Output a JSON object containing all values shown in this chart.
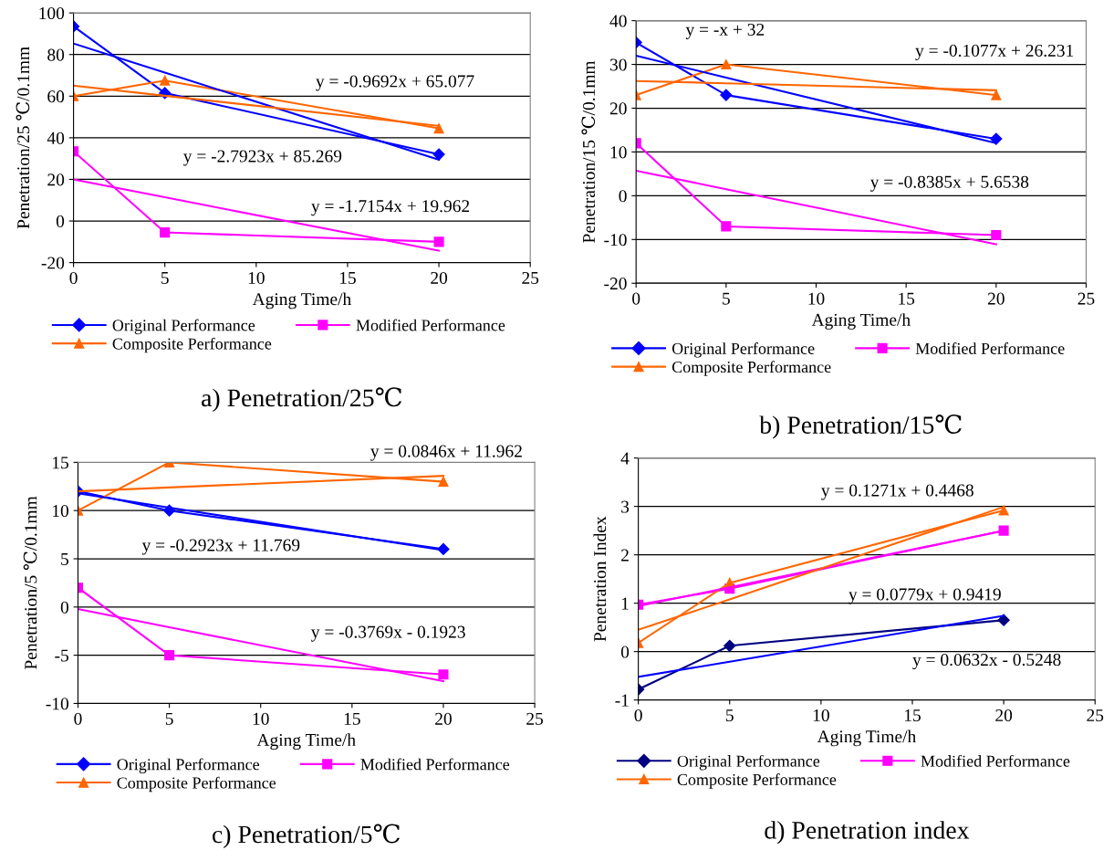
{
  "chart_data": [
    {
      "type": "line",
      "title": "a) Penetration/25℃",
      "xlabel": "Aging Time/h",
      "ylabel": "Penetration/25 ℃/0.1mm",
      "x": [
        0,
        5,
        20
      ],
      "xlim": [
        0,
        25
      ],
      "xticks": [
        0,
        5,
        10,
        15,
        20,
        25
      ],
      "ylim": [
        -20,
        100
      ],
      "yticks": [
        -20,
        0,
        20,
        40,
        60,
        80,
        100
      ],
      "grid": "y",
      "legend": "bottom",
      "series": [
        {
          "name": "Original Performance",
          "color": "#0000ff",
          "marker": "diamond",
          "values": [
            93.5,
            61.5,
            32
          ]
        },
        {
          "name": "Modified Performance",
          "color": "#ff00ff",
          "marker": "square",
          "values": [
            33.5,
            -5.5,
            -10
          ]
        },
        {
          "name": "Composite Performance",
          "color": "#ff6600",
          "marker": "triangle",
          "values": [
            60,
            67.5,
            44.5
          ]
        },
        {
          "color": "#0000ff",
          "marker": "none",
          "values": [
            85.3,
            71.3,
            29.4
          ]
        },
        {
          "color": "#ff00ff",
          "marker": "none",
          "values": [
            20.0,
            11.4,
            -14.3
          ]
        },
        {
          "color": "#ff6600",
          "marker": "none",
          "values": [
            65.1,
            60.2,
            45.7
          ]
        }
      ],
      "annotations": [
        "y = -0.9692x + 65.077",
        "y = -2.7923x + 85.269",
        "y = -1.7154x + 19.962"
      ]
    },
    {
      "type": "line",
      "title": "b) Penetration/15℃",
      "xlabel": "Aging Time/h",
      "ylabel": "Penetration/15 ℃/0.1mm",
      "x": [
        0,
        5,
        20
      ],
      "xlim": [
        0,
        25
      ],
      "xticks": [
        0,
        5,
        10,
        15,
        20,
        25
      ],
      "ylim": [
        -20,
        40
      ],
      "yticks": [
        -20,
        -10,
        0,
        10,
        20,
        30,
        40
      ],
      "grid": "y",
      "legend": "bottom",
      "series": [
        {
          "name": "Original Performance",
          "color": "#0000ff",
          "marker": "diamond",
          "values": [
            35,
            23,
            13
          ]
        },
        {
          "name": "Modified Performance",
          "color": "#ff00ff",
          "marker": "square",
          "values": [
            12,
            -7,
            -9
          ]
        },
        {
          "name": "Composite Performance",
          "color": "#ff6600",
          "marker": "triangle",
          "values": [
            23,
            30,
            23
          ]
        },
        {
          "color": "#0000ff",
          "marker": "none",
          "values": [
            32,
            27,
            12
          ]
        },
        {
          "color": "#ff00ff",
          "marker": "none",
          "values": [
            5.7,
            1.5,
            -11.1
          ]
        },
        {
          "color": "#ff6600",
          "marker": "none",
          "values": [
            26.2,
            25.7,
            24.1
          ]
        }
      ],
      "annotations": [
        "y = -x + 32",
        "y = -0.1077x + 26.231",
        "y = -0.8385x + 5.6538"
      ]
    },
    {
      "type": "line",
      "title": "c) Penetration/5℃",
      "xlabel": "Aging Time/h",
      "ylabel": "Penetration/5 ℃/0.1mm",
      "x": [
        0,
        5,
        20
      ],
      "xlim": [
        0,
        25
      ],
      "xticks": [
        0,
        5,
        10,
        15,
        20,
        25
      ],
      "ylim": [
        -10,
        15
      ],
      "yticks": [
        -10,
        -5,
        0,
        5,
        10,
        15
      ],
      "grid": "y",
      "legend": "bottom",
      "series": [
        {
          "name": "Original Performance",
          "color": "#0000ff",
          "marker": "diamond",
          "values": [
            12,
            10,
            6
          ]
        },
        {
          "name": "Modified Performance",
          "color": "#ff00ff",
          "marker": "square",
          "values": [
            2,
            -5,
            -7
          ]
        },
        {
          "name": "Composite Performance",
          "color": "#ff6600",
          "marker": "triangle",
          "values": [
            10,
            15,
            13
          ]
        },
        {
          "color": "#0000ff",
          "marker": "none",
          "values": [
            11.8,
            10.3,
            5.9
          ]
        },
        {
          "color": "#ff00ff",
          "marker": "none",
          "values": [
            -0.2,
            -2.1,
            -7.7
          ]
        },
        {
          "color": "#ff6600",
          "marker": "none",
          "values": [
            12.0,
            12.4,
            13.6
          ]
        }
      ],
      "annotations": [
        "y = 0.0846x + 11.962",
        "y = -0.2923x + 11.769",
        "y = -0.3769x - 0.1923"
      ]
    },
    {
      "type": "line",
      "title": "d) Penetration index",
      "xlabel": "Aging Time/h",
      "ylabel": "Penetration Index",
      "x": [
        0,
        5,
        20
      ],
      "xlim": [
        0,
        25
      ],
      "xticks": [
        0,
        5,
        10,
        15,
        20,
        25
      ],
      "ylim": [
        -1,
        4
      ],
      "yticks": [
        -1,
        0,
        1,
        2,
        3,
        4
      ],
      "grid": "y",
      "legend": "bottom",
      "series": [
        {
          "name": "Original Performance",
          "color": "#000080",
          "marker": "diamond",
          "values": [
            -0.78,
            0.12,
            0.65
          ]
        },
        {
          "name": "Modified Performance",
          "color": "#ff00ff",
          "marker": "square",
          "values": [
            0.97,
            1.3,
            2.5
          ]
        },
        {
          "name": "Composite Performance",
          "color": "#ff6600",
          "marker": "triangle",
          "values": [
            0.18,
            1.42,
            2.92
          ]
        },
        {
          "color": "#0000ff",
          "marker": "none",
          "values": [
            -0.52,
            -0.21,
            0.74
          ]
        },
        {
          "color": "#ff00ff",
          "marker": "none",
          "values": [
            0.94,
            1.33,
            2.5
          ]
        },
        {
          "color": "#ff6600",
          "marker": "none",
          "values": [
            0.45,
            1.08,
            2.99
          ]
        }
      ],
      "annotations": [
        "y = 0.1271x + 0.4468",
        "y = 0.0779x + 0.9419",
        "y = 0.0632x - 0.5248"
      ]
    }
  ]
}
